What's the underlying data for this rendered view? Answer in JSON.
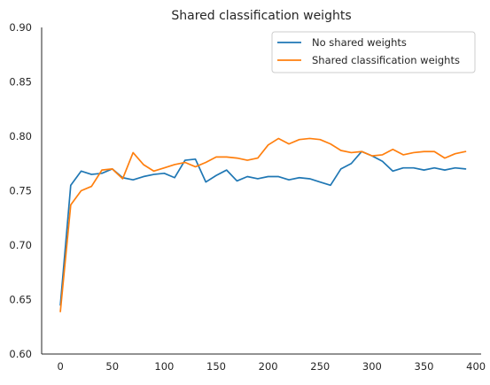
{
  "chart_data": {
    "type": "line",
    "title": "Shared classification weights",
    "xlabel": "",
    "ylabel": "",
    "xlim": [
      -18,
      405
    ],
    "ylim": [
      0.6,
      0.9
    ],
    "xticks": [
      0,
      50,
      100,
      150,
      200,
      250,
      300,
      350,
      400
    ],
    "yticks": [
      0.6,
      0.65,
      0.7,
      0.75,
      0.8,
      0.85,
      0.9
    ],
    "xtick_labels": [
      "0",
      "50",
      "100",
      "150",
      "200",
      "250",
      "300",
      "350",
      "400"
    ],
    "ytick_labels": [
      "0.60",
      "0.65",
      "0.70",
      "0.75",
      "0.80",
      "0.85",
      "0.90"
    ],
    "grid": false,
    "legend_position": "top-right",
    "x": [
      0,
      10,
      20,
      30,
      40,
      50,
      60,
      70,
      80,
      90,
      100,
      110,
      120,
      130,
      140,
      150,
      160,
      170,
      180,
      190,
      200,
      210,
      220,
      230,
      240,
      250,
      260,
      270,
      280,
      290,
      300,
      310,
      320,
      330,
      340,
      350,
      360,
      370,
      380,
      390
    ],
    "series": [
      {
        "name": "No shared weights",
        "color": "#1f77b4",
        "values": [
          0.645,
          0.755,
          0.768,
          0.765,
          0.766,
          0.77,
          0.762,
          0.76,
          0.763,
          0.765,
          0.766,
          0.762,
          0.778,
          0.779,
          0.758,
          0.764,
          0.769,
          0.759,
          0.763,
          0.761,
          0.763,
          0.763,
          0.76,
          0.762,
          0.761,
          0.758,
          0.755,
          0.77,
          0.775,
          0.786,
          0.782,
          0.777,
          0.768,
          0.771,
          0.771,
          0.769,
          0.771,
          0.769,
          0.771,
          0.77
        ]
      },
      {
        "name": "Shared classification weights",
        "color": "#ff7f0e",
        "values": [
          0.639,
          0.737,
          0.75,
          0.754,
          0.769,
          0.77,
          0.761,
          0.785,
          0.774,
          0.768,
          0.771,
          0.774,
          0.776,
          0.772,
          0.776,
          0.781,
          0.781,
          0.78,
          0.778,
          0.78,
          0.792,
          0.798,
          0.793,
          0.797,
          0.798,
          0.797,
          0.793,
          0.787,
          0.785,
          0.786,
          0.782,
          0.783,
          0.788,
          0.783,
          0.785,
          0.786,
          0.786,
          0.78,
          0.784,
          0.786
        ]
      }
    ]
  }
}
